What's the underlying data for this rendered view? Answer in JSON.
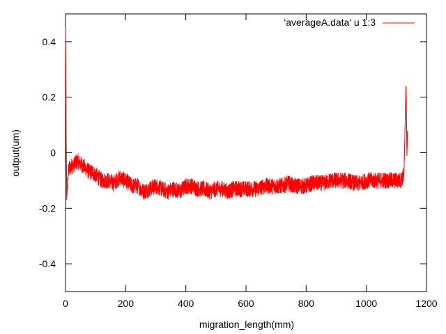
{
  "chart_data": {
    "type": "line",
    "title": "",
    "xlabel": "migration_length(mm)",
    "ylabel": "output(um)",
    "xlim": [
      0,
      1200
    ],
    "ylim": [
      -0.5,
      0.5
    ],
    "x_ticks": [
      0,
      200,
      400,
      600,
      800,
      1000,
      1200
    ],
    "x_tick_labels": [
      "0",
      "200",
      "400",
      "600",
      "800",
      "1000",
      "1200"
    ],
    "y_ticks": [
      0.4,
      0.2,
      0,
      -0.2,
      -0.4
    ],
    "y_tick_labels": [
      "0.4",
      "0.2",
      "0",
      "-0.2",
      "-0.4"
    ],
    "grid": false,
    "legend": {
      "position": "top-right"
    },
    "series": [
      {
        "name": "'averageA.data' u 1:3",
        "color": "#ff0000",
        "x": [
          0,
          1,
          2,
          3,
          4,
          6,
          10,
          20,
          30,
          40,
          50,
          60,
          70,
          80,
          90,
          100,
          120,
          140,
          160,
          180,
          200,
          220,
          240,
          260,
          280,
          300,
          320,
          340,
          360,
          380,
          400,
          420,
          440,
          460,
          480,
          500,
          520,
          540,
          560,
          580,
          600,
          620,
          640,
          660,
          680,
          700,
          720,
          740,
          760,
          780,
          800,
          820,
          840,
          860,
          880,
          900,
          920,
          940,
          960,
          980,
          1000,
          1020,
          1040,
          1060,
          1080,
          1100,
          1115,
          1120,
          1125,
          1128,
          1130,
          1132,
          1134,
          1135,
          1137
        ],
        "y": [
          0.45,
          0.3,
          0.1,
          -0.05,
          -0.17,
          -0.12,
          -0.06,
          -0.05,
          -0.04,
          -0.03,
          -0.04,
          -0.05,
          -0.06,
          -0.07,
          -0.07,
          -0.08,
          -0.1,
          -0.1,
          -0.11,
          -0.09,
          -0.1,
          -0.12,
          -0.12,
          -0.14,
          -0.13,
          -0.12,
          -0.13,
          -0.14,
          -0.13,
          -0.14,
          -0.12,
          -0.12,
          -0.13,
          -0.13,
          -0.14,
          -0.13,
          -0.13,
          -0.14,
          -0.13,
          -0.13,
          -0.13,
          -0.13,
          -0.13,
          -0.12,
          -0.12,
          -0.12,
          -0.12,
          -0.11,
          -0.12,
          -0.12,
          -0.12,
          -0.11,
          -0.11,
          -0.11,
          -0.1,
          -0.1,
          -0.1,
          -0.1,
          -0.11,
          -0.11,
          -0.1,
          -0.1,
          -0.1,
          -0.1,
          -0.1,
          -0.1,
          -0.1,
          -0.09,
          -0.08,
          0.05,
          0.16,
          0.24,
          0.1,
          -0.01,
          0.08
        ]
      }
    ]
  }
}
